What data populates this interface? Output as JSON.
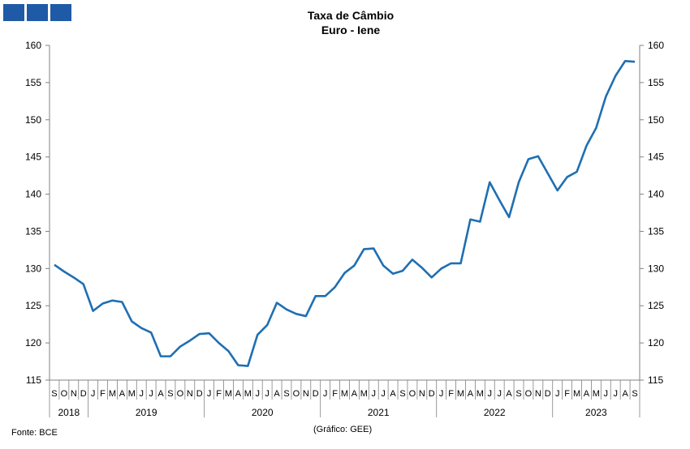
{
  "logo_color": "#1f5aa6",
  "line_color": "#1f6fb2",
  "footer": {
    "source": "Fonte: BCE",
    "credit": "(Gráfico: GEE)"
  },
  "chart_data": {
    "type": "line",
    "title": "Taxa de Câmbio",
    "subtitle": "Euro - Iene",
    "ylim": [
      115,
      160
    ],
    "yticks": [
      115,
      120,
      125,
      130,
      135,
      140,
      145,
      150,
      155,
      160
    ],
    "dual_y_axis": true,
    "grid": false,
    "month_labels": [
      "S",
      "O",
      "N",
      "D",
      "J",
      "F",
      "M",
      "A",
      "M",
      "J",
      "J",
      "A",
      "S",
      "O",
      "N",
      "D",
      "J",
      "F",
      "M",
      "A",
      "M",
      "J",
      "J",
      "A",
      "S",
      "O",
      "N",
      "D",
      "J",
      "F",
      "M",
      "A",
      "M",
      "J",
      "J",
      "A",
      "S",
      "O",
      "N",
      "D",
      "J",
      "F",
      "M",
      "A",
      "M",
      "J",
      "J",
      "A",
      "S",
      "O",
      "N",
      "D",
      "J",
      "F",
      "M",
      "A",
      "M",
      "J",
      "J",
      "A",
      "S"
    ],
    "year_groups": [
      {
        "label": "2018",
        "count": 4
      },
      {
        "label": "2019",
        "count": 12
      },
      {
        "label": "2020",
        "count": 12
      },
      {
        "label": "2021",
        "count": 12
      },
      {
        "label": "2022",
        "count": 12
      },
      {
        "label": "2023",
        "count": 9
      }
    ],
    "series": [
      {
        "values": [
          130.5,
          129.6,
          128.8,
          127.9,
          124.3,
          125.3,
          125.7,
          125.5,
          122.9,
          122.0,
          121.4,
          118.2,
          118.2,
          119.5,
          120.3,
          121.2,
          121.3,
          120.0,
          118.9,
          117.0,
          116.9,
          121.1,
          122.4,
          125.4,
          124.5,
          123.9,
          123.6,
          126.3,
          126.3,
          127.5,
          129.4,
          130.4,
          132.6,
          132.7,
          130.4,
          129.3,
          129.7,
          131.2,
          130.1,
          128.8,
          130.0,
          130.7,
          130.7,
          136.6,
          136.3,
          141.6,
          139.2,
          136.9,
          141.6,
          144.7,
          145.1,
          142.8,
          140.5,
          142.3,
          143.0,
          146.5,
          148.9,
          153.1,
          155.9,
          157.9,
          157.8
        ]
      }
    ]
  }
}
